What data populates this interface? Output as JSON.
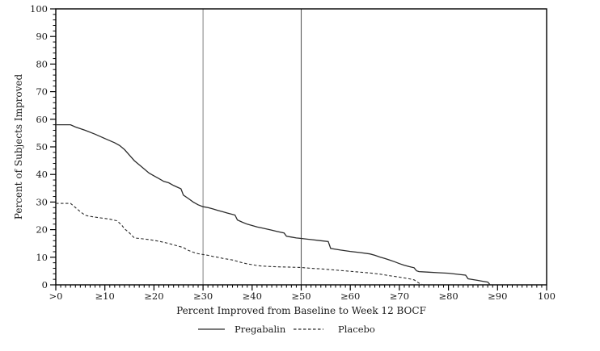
{
  "figure": {
    "background": "#ffffff",
    "text_color": "#1a1a1a",
    "frame_color": "#000000"
  },
  "chart_data": {
    "type": "line",
    "title": "",
    "xlabel": "Percent Improved from Baseline to Week 12 BOCF",
    "ylabel": "Percent of Subjects Improved",
    "xlim": [
      0,
      100
    ],
    "ylim": [
      0,
      100
    ],
    "grid": false,
    "frame": true,
    "x_ticks": [
      {
        "value": 0,
        "label": ">0"
      },
      {
        "value": 10,
        "label": "≥10"
      },
      {
        "value": 20,
        "label": "≥20"
      },
      {
        "value": 30,
        "label": "≥30"
      },
      {
        "value": 40,
        "label": "≥40"
      },
      {
        "value": 50,
        "label": "≥50"
      },
      {
        "value": 60,
        "label": "≥60"
      },
      {
        "value": 70,
        "label": "≥70"
      },
      {
        "value": 80,
        "label": "≥80"
      },
      {
        "value": 90,
        "label": "≥90"
      },
      {
        "value": 100,
        "label": "100"
      }
    ],
    "y_ticks": [
      {
        "value": 0,
        "label": "0"
      },
      {
        "value": 10,
        "label": "10"
      },
      {
        "value": 20,
        "label": "20"
      },
      {
        "value": 30,
        "label": "30"
      },
      {
        "value": 40,
        "label": "40"
      },
      {
        "value": 50,
        "label": "50"
      },
      {
        "value": 60,
        "label": "60"
      },
      {
        "value": 70,
        "label": "70"
      },
      {
        "value": 80,
        "label": "80"
      },
      {
        "value": 90,
        "label": "90"
      },
      {
        "value": 100,
        "label": "100"
      }
    ],
    "x_minor_step": 1,
    "y_minor_step": 2,
    "reference_lines": [
      {
        "x": 30,
        "color": "#8c8c8c"
      },
      {
        "x": 50,
        "color": "#5a5a5a"
      }
    ],
    "legend": {
      "position": "bottom-center",
      "entries": [
        {
          "name": "Pregabalin",
          "style": "solid"
        },
        {
          "name": "Placebo",
          "style": "dashed"
        }
      ]
    },
    "series": [
      {
        "name": "Pregabalin",
        "style": "solid",
        "color": "#2b2b2b",
        "points": [
          [
            0,
            58
          ],
          [
            3,
            58
          ],
          [
            4,
            57.2
          ],
          [
            6,
            56
          ],
          [
            8,
            54.6
          ],
          [
            10,
            53
          ],
          [
            12,
            51.5
          ],
          [
            13,
            50.5
          ],
          [
            14,
            49
          ],
          [
            15,
            47
          ],
          [
            16,
            45
          ],
          [
            17,
            43.5
          ],
          [
            18,
            42
          ],
          [
            19,
            40.5
          ],
          [
            20,
            39.5
          ],
          [
            21,
            38.5
          ],
          [
            22,
            37.5
          ],
          [
            23,
            37
          ],
          [
            24,
            36
          ],
          [
            25.5,
            34.8
          ],
          [
            26,
            32.5
          ],
          [
            27,
            31.3
          ],
          [
            28,
            30
          ],
          [
            29,
            29
          ],
          [
            30,
            28.3
          ],
          [
            31,
            28
          ],
          [
            32,
            27.5
          ],
          [
            33,
            27
          ],
          [
            34,
            26.5
          ],
          [
            35,
            26
          ],
          [
            36.5,
            25.3
          ],
          [
            37,
            23.5
          ],
          [
            38,
            22.7
          ],
          [
            39,
            22
          ],
          [
            40,
            21.5
          ],
          [
            41,
            21
          ],
          [
            42,
            20.6
          ],
          [
            43,
            20.2
          ],
          [
            44,
            19.8
          ],
          [
            45,
            19.4
          ],
          [
            46.5,
            18.8
          ],
          [
            47,
            17.6
          ],
          [
            48,
            17.3
          ],
          [
            49,
            17
          ],
          [
            50,
            16.8
          ],
          [
            52,
            16.4
          ],
          [
            54,
            16
          ],
          [
            55.5,
            15.7
          ],
          [
            56,
            13.2
          ],
          [
            58,
            12.6
          ],
          [
            60,
            12.1
          ],
          [
            62,
            11.7
          ],
          [
            64,
            11.2
          ],
          [
            65,
            10.7
          ],
          [
            66,
            10.1
          ],
          [
            67,
            9.6
          ],
          [
            68,
            9
          ],
          [
            69,
            8.4
          ],
          [
            70,
            7.7
          ],
          [
            71,
            7.1
          ],
          [
            72,
            6.6
          ],
          [
            73,
            6.2
          ],
          [
            73.5,
            5.1
          ],
          [
            74,
            4.8
          ],
          [
            76,
            4.6
          ],
          [
            78,
            4.4
          ],
          [
            80,
            4.2
          ],
          [
            82,
            3.8
          ],
          [
            83.5,
            3.5
          ],
          [
            84,
            2.2
          ],
          [
            85,
            1.9
          ],
          [
            86,
            1.6
          ],
          [
            87,
            1.3
          ],
          [
            88,
            1
          ],
          [
            88.5,
            0
          ]
        ]
      },
      {
        "name": "Placebo",
        "style": "dashed",
        "color": "#2b2b2b",
        "points": [
          [
            0,
            29.5
          ],
          [
            3,
            29.5
          ],
          [
            4,
            28
          ],
          [
            5,
            26.5
          ],
          [
            6,
            25.2
          ],
          [
            7,
            24.8
          ],
          [
            9,
            24.3
          ],
          [
            11,
            23.8
          ],
          [
            12.5,
            23.2
          ],
          [
            13.5,
            21.5
          ],
          [
            14,
            20.3
          ],
          [
            15,
            18.8
          ],
          [
            16,
            17
          ],
          [
            17,
            16.8
          ],
          [
            18,
            16.6
          ],
          [
            19,
            16.4
          ],
          [
            20,
            16.1
          ],
          [
            21,
            15.8
          ],
          [
            22,
            15.4
          ],
          [
            23,
            15
          ],
          [
            24,
            14.5
          ],
          [
            25,
            14
          ],
          [
            26,
            13.5
          ],
          [
            27,
            12.5
          ],
          [
            28,
            11.8
          ],
          [
            29,
            11.3
          ],
          [
            30,
            11
          ],
          [
            31,
            10.7
          ],
          [
            32,
            10.3
          ],
          [
            33,
            10
          ],
          [
            34,
            9.6
          ],
          [
            35,
            9.3
          ],
          [
            36,
            9
          ],
          [
            37,
            8.5
          ],
          [
            38,
            8
          ],
          [
            39,
            7.6
          ],
          [
            40,
            7.3
          ],
          [
            41,
            7
          ],
          [
            42,
            6.8
          ],
          [
            44,
            6.6
          ],
          [
            46,
            6.5
          ],
          [
            48,
            6.4
          ],
          [
            50,
            6.3
          ],
          [
            52,
            6
          ],
          [
            54,
            5.8
          ],
          [
            56,
            5.5
          ],
          [
            58,
            5.2
          ],
          [
            60,
            4.9
          ],
          [
            62,
            4.6
          ],
          [
            64,
            4.3
          ],
          [
            66,
            3.9
          ],
          [
            68,
            3.3
          ],
          [
            70,
            2.8
          ],
          [
            72,
            2.2
          ],
          [
            73,
            1.8
          ],
          [
            74,
            0.6
          ],
          [
            74.8,
            0
          ]
        ]
      }
    ]
  }
}
